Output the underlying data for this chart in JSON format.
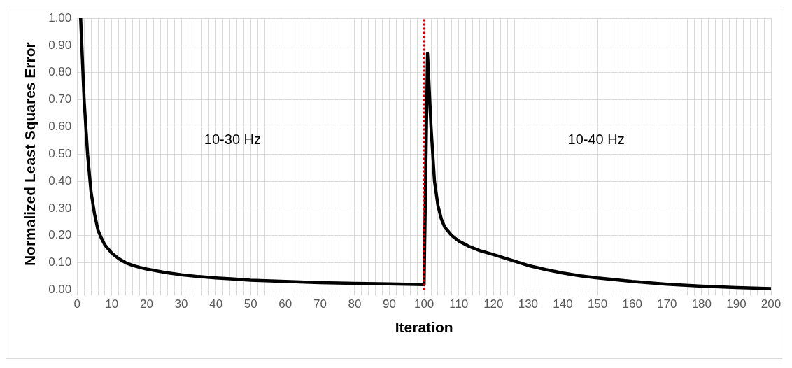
{
  "chart_data": {
    "type": "line",
    "xlabel": "Iteration",
    "ylabel": "Normalized Least Squares Error",
    "annotations": [
      "10-30 Hz",
      "10-40 Hz"
    ],
    "series": [
      {
        "color": "#000000",
        "x": [
          1,
          2,
          3,
          4,
          5,
          6,
          7,
          8,
          9,
          10,
          12,
          14,
          16,
          18,
          20,
          25,
          30,
          35,
          40,
          45,
          50,
          60,
          70,
          80,
          90,
          100,
          101,
          102,
          103,
          104,
          105,
          106,
          108,
          110,
          113,
          116,
          120,
          125,
          130,
          135,
          140,
          145,
          150,
          160,
          170,
          180,
          190,
          200
        ],
        "values": [
          1.0,
          0.7,
          0.5,
          0.36,
          0.28,
          0.22,
          0.19,
          0.165,
          0.15,
          0.135,
          0.115,
          0.1,
          0.09,
          0.083,
          0.077,
          0.065,
          0.056,
          0.049,
          0.044,
          0.04,
          0.036,
          0.031,
          0.027,
          0.024,
          0.022,
          0.02,
          0.87,
          0.6,
          0.4,
          0.31,
          0.26,
          0.23,
          0.2,
          0.18,
          0.16,
          0.145,
          0.13,
          0.11,
          0.09,
          0.075,
          0.062,
          0.052,
          0.044,
          0.031,
          0.021,
          0.014,
          0.009,
          0.005
        ]
      }
    ],
    "xlim": [
      0,
      200
    ],
    "xticks": [
      0,
      {
        "value": 2,
        "label": null
      },
      {
        "value": 4,
        "label": null
      },
      {
        "value": 6,
        "label": null
      },
      {
        "value": 8,
        "label": null
      },
      10,
      {
        "value": 12,
        "label": null
      },
      {
        "value": 14,
        "label": null
      },
      {
        "value": 16,
        "label": null
      },
      {
        "value": 18,
        "label": null
      },
      20,
      {
        "value": 22,
        "label": null
      },
      {
        "value": 24,
        "label": null
      },
      {
        "value": 26,
        "label": null
      },
      {
        "value": 28,
        "label": null
      },
      30,
      {
        "value": 32,
        "label": null
      },
      {
        "value": 34,
        "label": null
      },
      {
        "value": 36,
        "label": null
      },
      {
        "value": 38,
        "label": null
      },
      40,
      {
        "value": 42,
        "label": null
      },
      {
        "value": 44,
        "label": null
      },
      {
        "value": 46,
        "label": null
      },
      {
        "value": 48,
        "label": null
      },
      50,
      {
        "value": 52,
        "label": null
      },
      {
        "value": 54,
        "label": null
      },
      {
        "value": 56,
        "label": null
      },
      {
        "value": 58,
        "label": null
      },
      60,
      {
        "value": 62,
        "label": null
      },
      {
        "value": 64,
        "label": null
      },
      {
        "value": 66,
        "label": null
      },
      {
        "value": 68,
        "label": null
      },
      70,
      {
        "value": 72,
        "label": null
      },
      {
        "value": 74,
        "label": null
      },
      {
        "value": 76,
        "label": null
      },
      {
        "value": 78,
        "label": null
      },
      80,
      {
        "value": 82,
        "label": null
      },
      {
        "value": 84,
        "label": null
      },
      {
        "value": 86,
        "label": null
      },
      {
        "value": 88,
        "label": null
      },
      90,
      {
        "value": 92,
        "label": null
      },
      {
        "value": 94,
        "label": null
      },
      {
        "value": 96,
        "label": null
      },
      {
        "value": 98,
        "label": null
      },
      100,
      {
        "value": 102,
        "label": null
      },
      {
        "value": 104,
        "label": null
      },
      {
        "value": 106,
        "label": null
      },
      {
        "value": 108,
        "label": null
      },
      110,
      {
        "value": 112,
        "label": null
      },
      {
        "value": 114,
        "label": null
      },
      {
        "value": 116,
        "label": null
      },
      {
        "value": 118,
        "label": null
      },
      120,
      {
        "value": 122,
        "label": null
      },
      {
        "value": 124,
        "label": null
      },
      {
        "value": 126,
        "label": null
      },
      {
        "value": 128,
        "label": null
      },
      130,
      {
        "value": 132,
        "label": null
      },
      {
        "value": 134,
        "label": null
      },
      {
        "value": 136,
        "label": null
      },
      {
        "value": 138,
        "label": null
      },
      140,
      {
        "value": 142,
        "label": null
      },
      {
        "value": 144,
        "label": null
      },
      {
        "value": 146,
        "label": null
      },
      {
        "value": 148,
        "label": null
      },
      150,
      {
        "value": 152,
        "label": null
      },
      {
        "value": 154,
        "label": null
      },
      {
        "value": 156,
        "label": null
      },
      {
        "value": 158,
        "label": null
      },
      160,
      {
        "value": 162,
        "label": null
      },
      {
        "value": 164,
        "label": null
      },
      {
        "value": 166,
        "label": null
      },
      {
        "value": 168,
        "label": null
      },
      170,
      {
        "value": 172,
        "label": null
      },
      {
        "value": 174,
        "label": null
      },
      {
        "value": 176,
        "label": null
      },
      {
        "value": 178,
        "label": null
      },
      180,
      {
        "value": 182,
        "label": null
      },
      {
        "value": 184,
        "label": null
      },
      {
        "value": 186,
        "label": null
      },
      {
        "value": 188,
        "label": null
      },
      190,
      {
        "value": 192,
        "label": null
      },
      {
        "value": 194,
        "label": null
      },
      {
        "value": 196,
        "label": null
      },
      {
        "value": 198,
        "label": null
      },
      200
    ],
    "ylim": [
      0,
      1
    ],
    "yticks": [
      {
        "value": 0,
        "label": "0.00"
      },
      {
        "value": 0.1,
        "label": "0.10"
      },
      {
        "value": 0.2,
        "label": "0.20"
      },
      {
        "value": 0.3,
        "label": "0.30"
      },
      {
        "value": 0.4,
        "label": "0.40"
      },
      {
        "value": 0.5,
        "label": "0.50"
      },
      {
        "value": 0.6,
        "label": "0.60"
      },
      {
        "value": 0.7,
        "label": "0.70"
      },
      {
        "value": 0.8,
        "label": "0.80"
      },
      {
        "value": 0.9,
        "label": "0.90"
      },
      {
        "value": 1,
        "label": "1.00"
      }
    ],
    "ref_lines": [
      {
        "axis": "x",
        "value": 100,
        "color": "#c00000",
        "line_style": "dotted"
      }
    ],
    "grid": true,
    "legend": false,
    "marker": "none",
    "line_style": "solid"
  }
}
